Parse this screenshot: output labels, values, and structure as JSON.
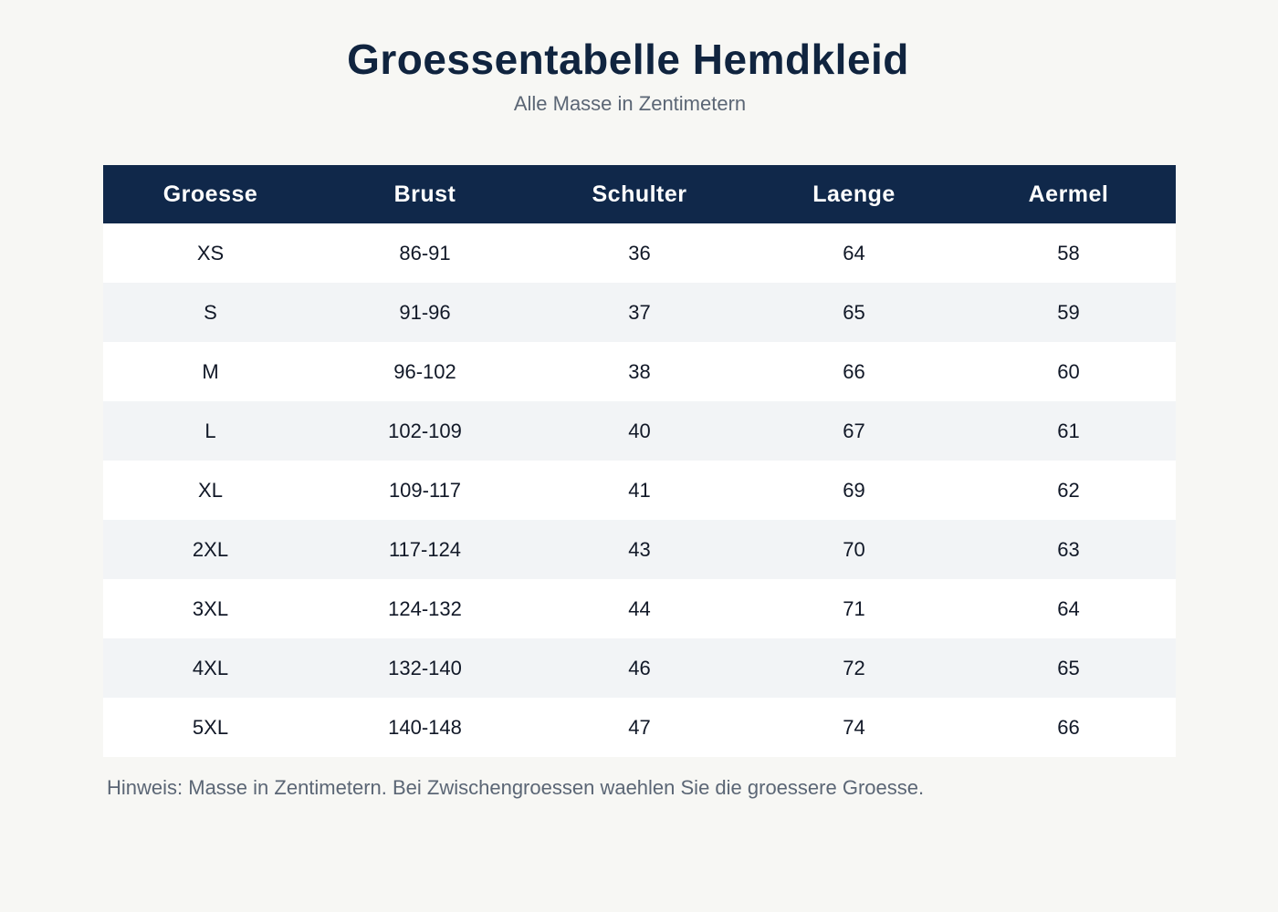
{
  "title": "Groessentabelle Hemdkleid",
  "subtitle": "Alle Masse in Zentimetern",
  "table": {
    "headers": [
      "Groesse",
      "Brust",
      "Schulter",
      "Laenge",
      "Aermel"
    ],
    "rows": [
      [
        "XS",
        "86-91",
        "36",
        "64",
        "58"
      ],
      [
        "S",
        "91-96",
        "37",
        "65",
        "59"
      ],
      [
        "M",
        "96-102",
        "38",
        "66",
        "60"
      ],
      [
        "L",
        "102-109",
        "40",
        "67",
        "61"
      ],
      [
        "XL",
        "109-117",
        "41",
        "69",
        "62"
      ],
      [
        "2XL",
        "117-124",
        "43",
        "70",
        "63"
      ],
      [
        "3XL",
        "124-132",
        "44",
        "71",
        "64"
      ],
      [
        "4XL",
        "132-140",
        "46",
        "72",
        "65"
      ],
      [
        "5XL",
        "140-148",
        "47",
        "74",
        "66"
      ]
    ]
  },
  "note": "Hinweis: Masse in Zentimetern. Bei Zwischengroessen waehlen Sie die groessere Groesse.",
  "colors": {
    "background": "#f7f7f4",
    "header_bg": "#10284a",
    "header_text": "#ffffff",
    "row_alt": "#f2f4f6",
    "row": "#ffffff",
    "title": "#10243f",
    "muted_text": "#5b6675"
  }
}
